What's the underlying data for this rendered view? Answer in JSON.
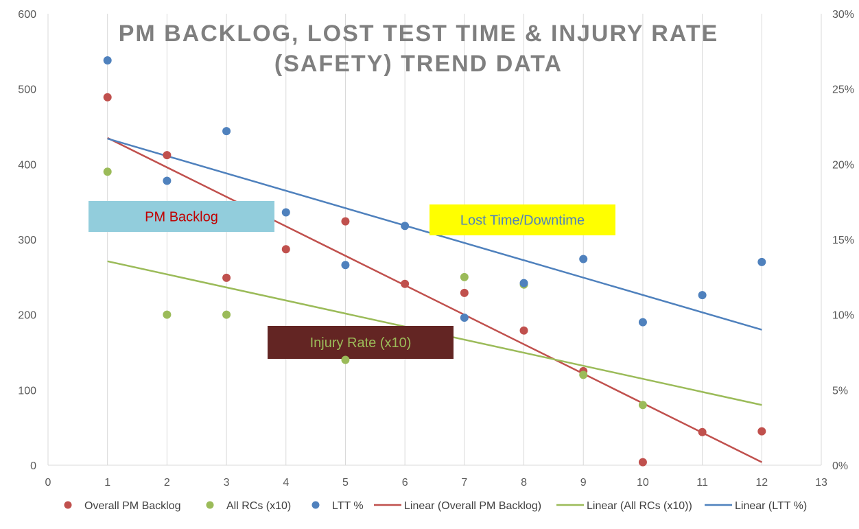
{
  "chart_data": {
    "type": "scatter",
    "title_lines": [
      "PM BACKLOG, LOST TEST TIME & INJURY RATE",
      "(SAFETY) TREND DATA"
    ],
    "x_ticks": [
      "0",
      "1",
      "2",
      "3",
      "4",
      "5",
      "6",
      "7",
      "8",
      "9",
      "10",
      "11",
      "12",
      "13"
    ],
    "xlim": [
      0,
      13
    ],
    "y_left_ticks": [
      "0",
      "100",
      "200",
      "300",
      "400",
      "500",
      "600"
    ],
    "ylim_left": [
      0,
      600
    ],
    "y_right_ticks": [
      "0%",
      "5%",
      "10%",
      "15%",
      "20%",
      "25%",
      "30%"
    ],
    "ylim_right": [
      0,
      0.3
    ],
    "grid": "vertical",
    "legend_position": "bottom",
    "series": [
      {
        "name": "Overall PM Backlog",
        "axis": "left",
        "color": "#c0504d",
        "x": [
          1,
          2,
          3,
          4,
          5,
          6,
          7,
          8,
          9,
          10,
          11,
          12
        ],
        "y": [
          489,
          412,
          249,
          287,
          324,
          241,
          229,
          179,
          125,
          4,
          44,
          45
        ]
      },
      {
        "name": "All RCs (x10)",
        "axis": "left",
        "color": "#9bbb59",
        "x": [
          1,
          2,
          3,
          5,
          7,
          8,
          9,
          10
        ],
        "y": [
          390,
          200,
          200,
          140,
          250,
          240,
          120,
          80
        ]
      },
      {
        "name": "LTT %",
        "axis": "right",
        "color": "#4f81bd",
        "x": [
          1,
          2,
          3,
          4,
          5,
          6,
          7,
          8,
          9,
          10,
          11,
          12
        ],
        "y": [
          0.269,
          0.189,
          0.222,
          0.168,
          0.133,
          0.159,
          0.098,
          0.121,
          0.137,
          0.095,
          0.113,
          0.135
        ]
      }
    ],
    "trendlines": [
      {
        "name": "Linear (Overall PM Backlog)",
        "axis": "left",
        "color": "#c0504d",
        "x": [
          1,
          12
        ],
        "y": [
          435,
          4
        ]
      },
      {
        "name": "Linear (All RCs (x10))",
        "axis": "left",
        "color": "#9bbb59",
        "x": [
          1,
          12
        ],
        "y": [
          271,
          80
        ]
      },
      {
        "name": "Linear (LTT %)",
        "axis": "right",
        "color": "#4f81bd",
        "x": [
          1,
          12
        ],
        "y": [
          0.217,
          0.09
        ]
      }
    ],
    "annotations": [
      {
        "text": "PM Backlog",
        "bg": "#92cddc",
        "fg": "#c00000"
      },
      {
        "text": "Lost Time/Downtime",
        "bg": "#ffff00",
        "fg": "#4f81bd"
      },
      {
        "text": "Injury Rate (x10)",
        "bg": "#632523",
        "fg": "#9bbb59"
      }
    ]
  }
}
